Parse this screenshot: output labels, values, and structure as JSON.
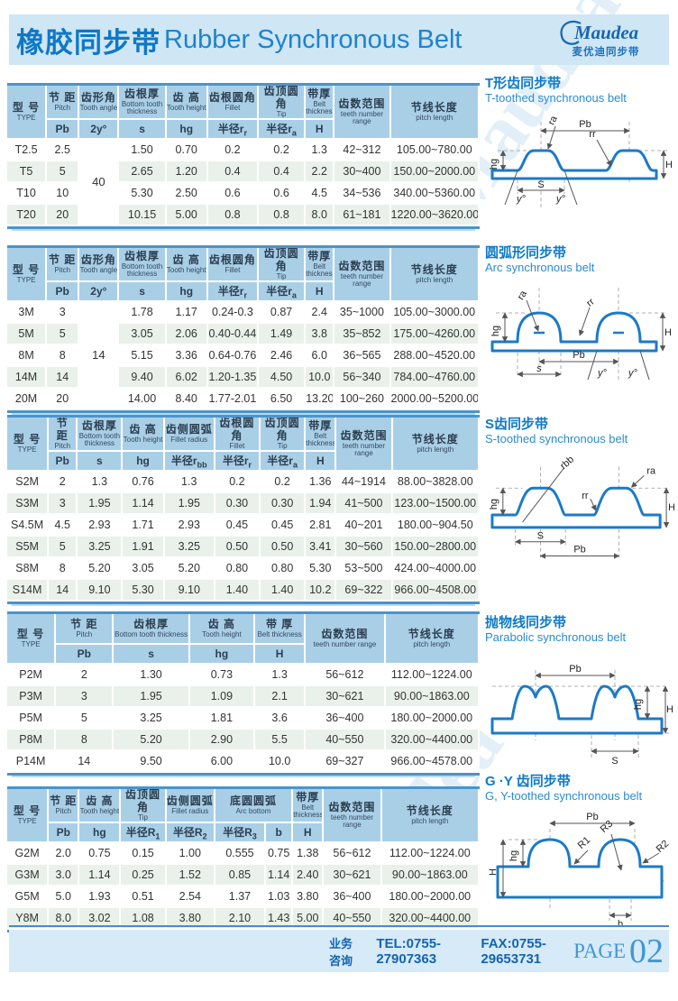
{
  "header": {
    "title_zh": "橡胶同步带",
    "title_en": "Rubber Synchronous Belt",
    "logo": {
      "name": "Maudea",
      "subtitle": "麦优迪同步带"
    }
  },
  "watermark": "Maudea",
  "colors": {
    "accent_blue": "#0e78c6",
    "table_header": "#a9cfe7",
    "row_alt": "#e9f1ea",
    "band": "#cfe6f5",
    "border_blue": "#4a94cb",
    "belt_stroke": "#1b7ac9"
  },
  "tables": [
    {
      "type_header": {
        "zh": "型 号",
        "en": "TYPE"
      },
      "cols": [
        {
          "zh": "节 距",
          "en": "Pitch",
          "sym": "Pb"
        },
        {
          "zh": "齿形角",
          "en": "Tooth angle",
          "sym": "2y°"
        },
        {
          "zh": "齿根厚",
          "en": "Bottom tooth thickness",
          "sym": "s"
        },
        {
          "zh": "齿 高",
          "en": "Tooth height",
          "sym": "hg"
        },
        {
          "zh": "齿根圆角",
          "en": "Fillet",
          "sym": "半径r_r"
        },
        {
          "zh": "齿顶圆角",
          "en": "Tip",
          "sym": "半径r_a"
        },
        {
          "zh": "带厚",
          "en": "Belt thickness",
          "sym": "H"
        }
      ],
      "range_header": {
        "zh": "齿数范围",
        "en": "teeth number range"
      },
      "length_header": {
        "zh": "节线长度",
        "en": "pitch length"
      },
      "rows": [
        {
          "type": "T2.5",
          "cells": [
            "2.5",
            {
              "v": "40",
              "rowspan": 4
            },
            "1.50",
            "0.70",
            "0.2",
            "0.2",
            "1.3"
          ],
          "range": "42~312",
          "length": "105.00~780.00"
        },
        {
          "type": "T5",
          "cells": [
            "5",
            null,
            "2.65",
            "1.20",
            "0.4",
            "0.4",
            "2.2"
          ],
          "range": "30~400",
          "length": "150.00~2000.00"
        },
        {
          "type": "T10",
          "cells": [
            "10",
            null,
            "5.30",
            "2.50",
            "0.6",
            "0.6",
            "4.5"
          ],
          "range": "34~536",
          "length": "340.00~5360.00"
        },
        {
          "type": "T20",
          "cells": [
            "20",
            null,
            "10.15",
            "5.00",
            "0.8",
            "0.8",
            "8.0"
          ],
          "range": "61~181",
          "length": "1220.00~3620.00"
        }
      ]
    },
    {
      "type_header": {
        "zh": "型 号",
        "en": "TYPE"
      },
      "cols": [
        {
          "zh": "节 距",
          "en": "Pitch",
          "sym": "Pb"
        },
        {
          "zh": "齿形角",
          "en": "Tooth angle",
          "sym": "2y°"
        },
        {
          "zh": "齿根厚",
          "en": "Bottom tooth thickness",
          "sym": "s"
        },
        {
          "zh": "齿 高",
          "en": "Tooth height",
          "sym": "hg"
        },
        {
          "zh": "齿根圆角",
          "en": "Fillet",
          "sym": "半径r_r"
        },
        {
          "zh": "齿顶圆角",
          "en": "Tip",
          "sym": "半径r_a"
        },
        {
          "zh": "带厚",
          "en": "Belt thickness",
          "sym": "H"
        }
      ],
      "range_header": {
        "zh": "齿数范围",
        "en": "teeth number range"
      },
      "length_header": {
        "zh": "节线长度",
        "en": "pitch length"
      },
      "rows": [
        {
          "type": "3M",
          "cells": [
            "3",
            {
              "v": "14",
              "rowspan": 5
            },
            "1.78",
            "1.17",
            "0.24-0.3",
            "0.87",
            "2.4"
          ],
          "range": "35~1000",
          "length": "105.00~3000.00"
        },
        {
          "type": "5M",
          "cells": [
            "5",
            null,
            "3.05",
            "2.06",
            "0.40-0.44",
            "1.49",
            "3.8"
          ],
          "range": "35~852",
          "length": "175.00~4260.00"
        },
        {
          "type": "8M",
          "cells": [
            "8",
            null,
            "5.15",
            "3.36",
            "0.64-0.76",
            "2.46",
            "6.0"
          ],
          "range": "36~565",
          "length": "288.00~4520.00"
        },
        {
          "type": "14M",
          "cells": [
            "14",
            null,
            "9.40",
            "6.02",
            "1.20-1.35",
            "4.50",
            "10.0"
          ],
          "range": "56~340",
          "length": "784.00~4760.00"
        },
        {
          "type": "20M",
          "cells": [
            "20",
            null,
            "14.00",
            "8.40",
            "1.77-2.01",
            "6.50",
            "13.20"
          ],
          "range": "100~260",
          "length": "2000.00~5200.00"
        }
      ]
    },
    {
      "type_header": {
        "zh": "型 号",
        "en": "TYPE"
      },
      "cols": [
        {
          "zh": "节 距",
          "en": "Pitch",
          "sym": "Pb"
        },
        {
          "zh": "齿根厚",
          "en": "Bottom tooth thickness",
          "sym": "s"
        },
        {
          "zh": "齿 高",
          "en": "Tooth height",
          "sym": "hg"
        },
        {
          "zh": "齿侧圆弧",
          "en": "Fillet radius",
          "sym": "半径r_bb"
        },
        {
          "zh": "齿根圆角",
          "en": "Fillet",
          "sym": "半径r_r"
        },
        {
          "zh": "齿顶圆角",
          "en": "Tip",
          "sym": "半径r_a"
        },
        {
          "zh": "带厚",
          "en": "Belt thickness",
          "sym": "H"
        }
      ],
      "range_header": {
        "zh": "齿数范围",
        "en": "teeth number range"
      },
      "length_header": {
        "zh": "节线长度",
        "en": "pitch length"
      },
      "rows": [
        {
          "type": "S2M",
          "cells": [
            "2",
            "1.3",
            "0.76",
            "1.3",
            "0.2",
            "0.2",
            "1.36"
          ],
          "range": "44~1914",
          "length": "88.00~3828.00"
        },
        {
          "type": "S3M",
          "cells": [
            "3",
            "1.95",
            "1.14",
            "1.95",
            "0.30",
            "0.30",
            "1.94"
          ],
          "range": "41~500",
          "length": "123.00~1500.00"
        },
        {
          "type": "S4.5M",
          "cells": [
            "4.5",
            "2.93",
            "1.71",
            "2.93",
            "0.45",
            "0.45",
            "2.81"
          ],
          "range": "40~201",
          "length": "180.00~904.50"
        },
        {
          "type": "S5M",
          "cells": [
            "5",
            "3.25",
            "1.91",
            "3.25",
            "0.50",
            "0.50",
            "3.41"
          ],
          "range": "30~560",
          "length": "150.00~2800.00"
        },
        {
          "type": "S8M",
          "cells": [
            "8",
            "5.20",
            "3.05",
            "5.20",
            "0.80",
            "0.80",
            "5.30"
          ],
          "range": "53~500",
          "length": "424.00~4000.00"
        },
        {
          "type": "S14M",
          "cells": [
            "14",
            "9.10",
            "5.30",
            "9.10",
            "1.40",
            "1.40",
            "10.2"
          ],
          "range": "69~322",
          "length": "966.00~4508.00"
        }
      ]
    },
    {
      "type_header": {
        "zh": "型 号",
        "en": "TYPE"
      },
      "cols": [
        {
          "zh": "节 距",
          "en": "Pitch",
          "sym": "Pb"
        },
        {
          "zh": "齿根厚",
          "en": "Bottom tooth thickness",
          "sym": "s"
        },
        {
          "zh": "齿 高",
          "en": "Tooth height",
          "sym": "hg"
        },
        {
          "zh": "带 厚",
          "en": "Belt thickness",
          "sym": "H"
        }
      ],
      "range_header": {
        "zh": "齿数范围",
        "en": "teeth number range"
      },
      "length_header": {
        "zh": "节线长度",
        "en": "pitch length"
      },
      "rows": [
        {
          "type": "P2M",
          "cells": [
            "2",
            "1.30",
            "0.73",
            "1.3"
          ],
          "range": "56~612",
          "length": "112.00~1224.00"
        },
        {
          "type": "P3M",
          "cells": [
            "3",
            "1.95",
            "1.09",
            "2.1"
          ],
          "range": "30~621",
          "length": "90.00~1863.00"
        },
        {
          "type": "P5M",
          "cells": [
            "5",
            "3.25",
            "1.81",
            "3.6"
          ],
          "range": "36~400",
          "length": "180.00~2000.00"
        },
        {
          "type": "P8M",
          "cells": [
            "8",
            "5.20",
            "2.90",
            "5.5"
          ],
          "range": "40~550",
          "length": "320.00~4400.00"
        },
        {
          "type": "P14M",
          "cells": [
            "14",
            "9.50",
            "6.00",
            "10.0"
          ],
          "range": "69~327",
          "length": "966.00~4578.00"
        }
      ]
    },
    {
      "type_header": {
        "zh": "型 号",
        "en": "TYPE"
      },
      "cols": [
        {
          "zh": "节 距",
          "en": "Pitch",
          "sym": "Pb"
        },
        {
          "zh": "齿 高",
          "en": "Tooth height",
          "sym": "hg"
        },
        {
          "zh": "齿顶圆角",
          "en": "Tip",
          "sym": "半径R_1"
        },
        {
          "zh": "齿侧圆弧",
          "en": "Fillet radius",
          "sym": "半径R_2"
        },
        {
          "zh": "底圆圆弧",
          "en": "Arc bottom",
          "syms": [
            "半径R_3",
            "b"
          ]
        },
        {
          "zh": "带厚",
          "en": "Belt thickness",
          "sym": "H"
        }
      ],
      "range_header": {
        "zh": "齿数范围",
        "en": "teeth number range"
      },
      "length_header": {
        "zh": "节线长度",
        "en": "pitch length"
      },
      "rows": [
        {
          "type": "G2M",
          "cells": [
            "2.0",
            "0.75",
            "0.15",
            "1.00",
            "0.555",
            "0.75",
            "1.38"
          ],
          "range": "56~612",
          "length": "112.00~1224.00"
        },
        {
          "type": "G3M",
          "cells": [
            "3.0",
            "1.14",
            "0.25",
            "1.52",
            "0.85",
            "1.14",
            "2.40"
          ],
          "range": "30~621",
          "length": "90.00~1863.00"
        },
        {
          "type": "G5M",
          "cells": [
            "5.0",
            "1.93",
            "0.51",
            "2.54",
            "1.37",
            "1.03",
            "3.80"
          ],
          "range": "36~400",
          "length": "180.00~2000.00"
        },
        {
          "type": "Y8M",
          "cells": [
            "8.0",
            "3.02",
            "1.08",
            "3.80",
            "2.10",
            "1.43",
            "5.00"
          ],
          "range": "40~550",
          "length": "320.00~4400.00"
        }
      ]
    }
  ],
  "diagrams": [
    {
      "title_zh": "T形齿同步带",
      "title_en": "T-toothed synchronous belt",
      "labels": {
        "pb": "Pb",
        "ra": "ra",
        "rr": "rr",
        "hg": "hg",
        "H": "H",
        "s": "S",
        "y1": "y°",
        "y2": "y°"
      }
    },
    {
      "title_zh": "圆弧形同步带",
      "title_en": "Arc synchronous belt",
      "labels": {
        "pb": "Pb",
        "ra": "ra",
        "rr": "rr",
        "hg": "hg",
        "H": "H",
        "s": "s",
        "y1": "y°",
        "y2": "y°"
      }
    },
    {
      "title_zh": "S齿同步带",
      "title_en": "S-toothed synchronous belt",
      "labels": {
        "pb": "Pb",
        "rbb": "rbb",
        "ra": "ra",
        "rr": "rr",
        "hg": "hg",
        "H": "H",
        "s": "S"
      }
    },
    {
      "title_zh": "抛物线同步带",
      "title_en": "Parabolic synchronous belt",
      "labels": {
        "pb": "Pb",
        "hg": "hg",
        "H": "H",
        "s": "S"
      }
    },
    {
      "title_zh": "G ·Y 齿同步带",
      "title_en": "G, Y-toothed synchronous belt",
      "labels": {
        "pb": "Pb",
        "r1": "R1",
        "r2": "R2",
        "r3": "R3",
        "hg": "hg",
        "H": "H",
        "b": "b"
      }
    }
  ],
  "footer": {
    "label": "业务咨询",
    "tel": "TEL:0755-27907363",
    "fax": "FAX:0755-29653731",
    "page_label": "PAGE",
    "page_number": "02"
  }
}
